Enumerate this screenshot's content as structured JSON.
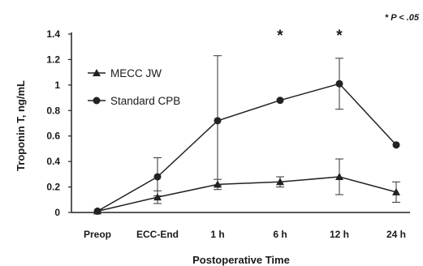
{
  "chart_data": {
    "type": "line",
    "xlabel": "Postoperative Time",
    "ylabel": "Troponin T, ng/mL",
    "ylim": [
      0,
      1.4
    ],
    "yticks": [
      "0",
      "0.2",
      "0.4",
      "0.6",
      "0.8",
      "1",
      "1.2",
      "1.4"
    ],
    "categories": [
      "Preop",
      "ECC-End",
      "1 h",
      "6 h",
      "12 h",
      "24 h"
    ],
    "grid": false,
    "legend_position": "upper-left",
    "significance_note": "* P < .05",
    "significance_marker": "*",
    "significant_categories": [
      "6 h",
      "12 h"
    ],
    "series": [
      {
        "name": "MECC JW",
        "marker": "triangle",
        "values": [
          0.01,
          0.12,
          0.22,
          0.24,
          0.28,
          0.16
        ],
        "error": [
          0.0,
          0.05,
          0.04,
          0.04,
          0.14,
          0.08
        ]
      },
      {
        "name": "Standard CPB",
        "marker": "circle",
        "values": [
          0.01,
          0.28,
          0.72,
          0.88,
          1.01,
          0.53
        ],
        "error": [
          0.0,
          0.15,
          0.51,
          0.0,
          0.2,
          0.0
        ]
      }
    ]
  }
}
